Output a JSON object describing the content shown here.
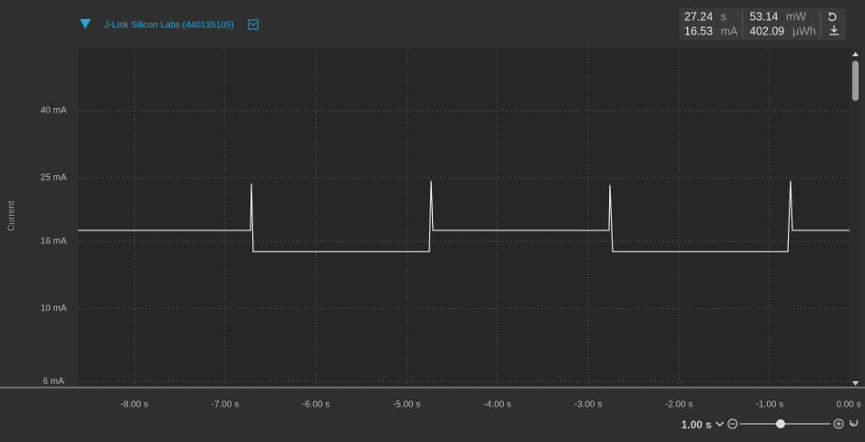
{
  "device": {
    "name": "J-Link Silicon Labs (440135105)"
  },
  "stats": [
    {
      "value": "27.24",
      "unit": "s"
    },
    {
      "value": "53.14",
      "unit": "mW"
    },
    {
      "value": "16.53",
      "unit": "mA"
    },
    {
      "value": "402.09",
      "unit": "µWh"
    }
  ],
  "zoom": {
    "label": "1.00 s"
  },
  "chart_data": {
    "type": "line",
    "y_label": "Current",
    "log_y": true,
    "grid": true,
    "xlim": [
      -8.62,
      0
    ],
    "ylim": [
      5.93,
      62.1
    ],
    "xticks": [
      {
        "value": -8,
        "label": "-8.00 s"
      },
      {
        "value": -7,
        "label": "-7.00 s"
      },
      {
        "value": -6,
        "label": "-6.00 s"
      },
      {
        "value": -5,
        "label": "-5.00 s"
      },
      {
        "value": -4,
        "label": "-4.00 s"
      },
      {
        "value": -3,
        "label": "-3.00 s"
      },
      {
        "value": -2,
        "label": "-2.00 s"
      },
      {
        "value": -1,
        "label": "-1.00 s"
      },
      {
        "value": 0,
        "label": "0.00 s"
      }
    ],
    "yticks": [
      {
        "value": 6,
        "label": "6 mA"
      },
      {
        "value": 10,
        "label": "10 mA"
      },
      {
        "value": 16,
        "label": "16 mA"
      },
      {
        "value": 25,
        "label": "25 mA"
      },
      {
        "value": 40,
        "label": "40 mA"
      }
    ],
    "series": [
      {
        "name": "J-Link Silicon Labs (440135105)",
        "color": "#e6e6e6",
        "x": [
          -8.62,
          -6.72,
          -6.71,
          -6.69,
          -4.75,
          -4.73,
          -4.71,
          -2.77,
          -2.76,
          -2.73,
          -0.8,
          -0.77,
          -0.75,
          -0.12
        ],
        "values": [
          17.3,
          17.3,
          24,
          14.9,
          14.9,
          24.5,
          17.3,
          17.3,
          23.8,
          14.9,
          14.9,
          24.5,
          17.3,
          17.3
        ]
      }
    ]
  }
}
